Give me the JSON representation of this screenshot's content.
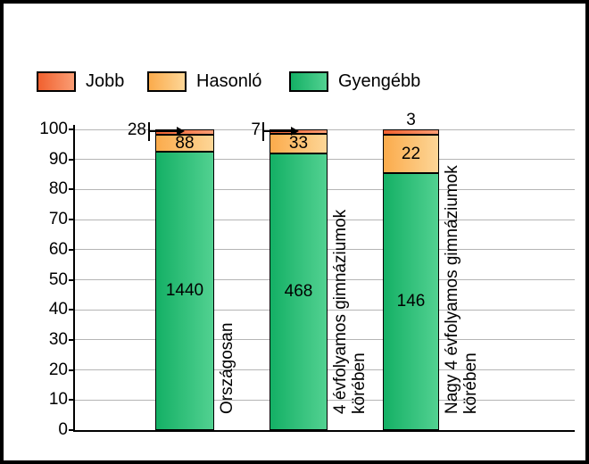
{
  "legend": {
    "items": [
      {
        "id": "jobb",
        "label": "Jobb"
      },
      {
        "id": "hasonlo",
        "label": "Hasonló"
      },
      {
        "id": "gyengebb",
        "label": "Gyengébb"
      }
    ]
  },
  "chart_data": {
    "type": "bar",
    "subtype": "stacked-to-100-percent",
    "categories": [
      "Országosan",
      "4 évfolyamos gimnáziumok\nkörében",
      "Nagy 4 évfolyamos gimnáziumok\nkörében"
    ],
    "series": [
      {
        "name": "Jobb",
        "values": [
          28,
          7,
          3
        ],
        "color_left": "#f1612f",
        "color_right": "#fa9d74",
        "label_placement": [
          "arrow-left",
          "arrow-left",
          "above"
        ]
      },
      {
        "name": "Hasonló",
        "values": [
          88,
          33,
          22
        ],
        "color_left": "#fbab4c",
        "color_right": "#fdd697"
      },
      {
        "name": "Gyengébb",
        "values": [
          1440,
          468,
          146
        ],
        "color_left": "#14b065",
        "color_right": "#52d191"
      }
    ],
    "ylim": [
      0,
      100
    ],
    "yticks": [
      0,
      10,
      20,
      30,
      40,
      50,
      60,
      70,
      80,
      90,
      100
    ],
    "grid": true,
    "legend_position": "top-left"
  },
  "colors": {
    "axis": "#000000",
    "gridline": "#b5b5b5",
    "text": "#000000",
    "background": "#ffffff",
    "frame": "#000000"
  }
}
